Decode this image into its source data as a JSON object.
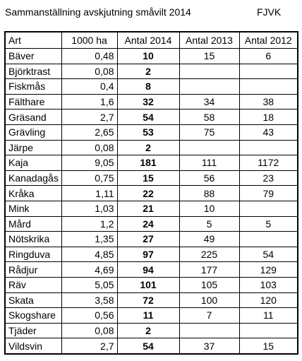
{
  "header": {
    "title": "Sammanställning avskjutning småvilt 2014",
    "org": "FJVK"
  },
  "table": {
    "columns": [
      "Art",
      "1000 ha",
      "Antal 2014",
      "Antal 2013",
      "Antal 2012"
    ],
    "rows": [
      [
        "Bäver",
        "0,48",
        10,
        15,
        6
      ],
      [
        "Björktrast",
        "0,08",
        2,
        null,
        null
      ],
      [
        "Fiskmås",
        "0,4",
        8,
        null,
        null
      ],
      [
        "Fälthare",
        "1,6",
        32,
        34,
        38
      ],
      [
        "Gräsand",
        "2,7",
        54,
        58,
        18
      ],
      [
        "Grävling",
        "2,65",
        53,
        75,
        43
      ],
      [
        "Järpe",
        "0,08",
        2,
        null,
        null
      ],
      [
        "Kaja",
        "9,05",
        181,
        111,
        1172
      ],
      [
        "Kanadagås",
        "0,75",
        15,
        56,
        23
      ],
      [
        "Kråka",
        "1,11",
        22,
        88,
        79
      ],
      [
        "Mink",
        "1,03",
        21,
        10,
        null
      ],
      [
        "Mård",
        "1,2",
        24,
        5,
        5
      ],
      [
        "Nötskrika",
        "1,35",
        27,
        49,
        null
      ],
      [
        "Ringduva",
        "4,85",
        97,
        225,
        54
      ],
      [
        "Rådjur",
        "4,69",
        94,
        177,
        129
      ],
      [
        "Räv",
        "5,05",
        101,
        105,
        103
      ],
      [
        "Skata",
        "3,58",
        72,
        100,
        120
      ],
      [
        "Skogshare",
        "0,56",
        11,
        7,
        11
      ],
      [
        "Tjäder",
        "0,08",
        2,
        null,
        null
      ],
      [
        "Vildsvin",
        "2,7",
        54,
        37,
        15
      ]
    ]
  }
}
